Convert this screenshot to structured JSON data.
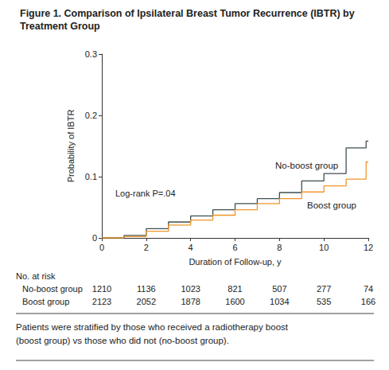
{
  "chart_data": {
    "type": "line",
    "title": "Figure 1. Comparison of Ipsilateral Breast Tumor Recurrence (IBTR) by Treatment Group",
    "x_label": "Duration of Follow-up, y",
    "y_label": "Probability of IBTR",
    "xlim": [
      0,
      12
    ],
    "xticks": [
      0,
      2,
      4,
      6,
      8,
      10,
      12
    ],
    "ylim": [
      0,
      0.3
    ],
    "yticks": [
      0,
      0.1,
      0.2,
      0.3
    ],
    "grid": false,
    "annotations": [
      "Log-rank P=.04"
    ],
    "series": [
      {
        "name": "No-boost group",
        "color": "#3e4f50",
        "line_style": "step",
        "x": [
          0,
          1,
          2,
          3,
          4,
          5,
          6,
          7,
          8,
          9,
          10,
          11,
          11.9,
          12
        ],
        "values": [
          0,
          0.004,
          0.015,
          0.026,
          0.036,
          0.046,
          0.056,
          0.064,
          0.074,
          0.093,
          0.105,
          0.147,
          0.158,
          0.158
        ]
      },
      {
        "name": "Boost group",
        "color": "#f0962a",
        "line_style": "step",
        "x": [
          0,
          1,
          2,
          3,
          4,
          5,
          6,
          7,
          8,
          9,
          10,
          11,
          11.9,
          12
        ],
        "values": [
          0,
          0.002,
          0.011,
          0.021,
          0.029,
          0.037,
          0.046,
          0.056,
          0.064,
          0.075,
          0.085,
          0.096,
          0.124,
          0.124
        ]
      }
    ],
    "at_risk": {
      "title": "No. at risk",
      "x": [
        0,
        2,
        4,
        6,
        8,
        10,
        12
      ],
      "rows": [
        {
          "name": "No-boost group",
          "values": [
            1210,
            1136,
            1023,
            821,
            507,
            277,
            74
          ]
        },
        {
          "name": "Boost group",
          "values": [
            2123,
            2052,
            1878,
            1600,
            1034,
            535,
            166
          ]
        }
      ]
    },
    "caption": "Patients were stratified by those who received a radiotherapy boost (boost group) vs those who did not (no-boost group)."
  }
}
